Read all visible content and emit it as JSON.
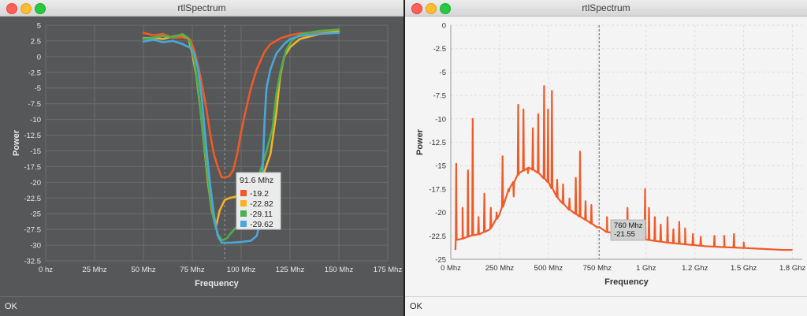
{
  "windows": [
    {
      "title": "rtlSpectrum",
      "status": "OK",
      "chart_data": {
        "type": "line",
        "xlabel": "Frequency",
        "ylabel": "Power",
        "xlim": [
          0,
          175
        ],
        "ylim": [
          -32.5,
          5
        ],
        "x_ticks": [
          0,
          25,
          50,
          75,
          100,
          125,
          150,
          175
        ],
        "x_tick_labels": [
          "0 hz",
          "25 Mhz",
          "50 Mhz",
          "75 Mhz",
          "100 Mhz",
          "125 Mhz",
          "150 Mhz",
          "175 Mhz"
        ],
        "y_ticks": [
          5,
          2.5,
          0,
          -2.5,
          -5,
          -7.5,
          -10,
          -12.5,
          -15,
          -17.5,
          -20,
          -22.5,
          -25,
          -27.5,
          -30,
          -32.5
        ],
        "y_tick_labels": [
          "5",
          "2.5",
          "0",
          "-2.5",
          "-5",
          "-7.5",
          "-10",
          "-12.5",
          "-15",
          "-17.5",
          "-20",
          "-22.5",
          "-25",
          "-27.5",
          "-30",
          "-32.5"
        ],
        "grid": true,
        "cursor_x": 91.6,
        "series": [
          {
            "color": "#f05a28",
            "x": [
              50,
              55,
              60,
              65,
              70,
              74,
              76,
              78,
              80,
              82,
              84,
              86,
              88,
              90,
              92,
              94,
              96,
              98,
              100,
              102,
              105,
              108,
              112,
              115,
              120,
              125,
              130,
              140,
              150
            ],
            "y": [
              3.8,
              3.4,
              3.6,
              3.0,
              3.1,
              2.7,
              1.0,
              -1.5,
              -4.5,
              -8,
              -12,
              -15.5,
              -17.5,
              -19.2,
              -19.2,
              -19.0,
              -18,
              -15.5,
              -12,
              -9,
              -5,
              -2,
              0.8,
              2,
              2.9,
              3.4,
              3.7,
              3.9,
              4
            ]
          },
          {
            "color": "#f5b225",
            "x": [
              50,
              55,
              60,
              65,
              70,
              73,
              75,
              77,
              79,
              81,
              83,
              85,
              87,
              89,
              91.6,
              94,
              97,
              100,
              105,
              110,
              115,
              118,
              120,
              122,
              125,
              130,
              140,
              150
            ],
            "y": [
              2.9,
              3.0,
              2.8,
              3.2,
              3.5,
              2.9,
              0.5,
              -3,
              -8,
              -14,
              -20,
              -24.5,
              -27.2,
              -24.5,
              -22.82,
              -22.5,
              -22.3,
              -22,
              -21.5,
              -20,
              -15.5,
              -9,
              -3,
              0,
              1.5,
              2.8,
              3.6,
              4
            ]
          },
          {
            "color": "#4caf50",
            "x": [
              50,
              55,
              60,
              65,
              70,
              72,
              74,
              76,
              78,
              80,
              82,
              84,
              86,
              88,
              90,
              91.6,
              93,
              95,
              98,
              102,
              106,
              110,
              113,
              116,
              118,
              120,
              123,
              126,
              130,
              140,
              150
            ],
            "y": [
              2.8,
              3.0,
              3.3,
              3.1,
              3.6,
              3.2,
              2.2,
              -0.5,
              -5,
              -11,
              -16.5,
              -22,
              -26,
              -28.2,
              -29.2,
              -29.11,
              -28.8,
              -28,
              -27,
              -25,
              -22,
              -18,
              -15,
              -11.5,
              -6,
              -2.5,
              1,
              2.6,
              3.5,
              4.1,
              4.3
            ]
          },
          {
            "color": "#4aa8d8",
            "x": [
              50,
              55,
              60,
              65,
              70,
              74,
              76,
              78,
              80,
              82,
              84,
              86,
              88,
              90,
              91.6,
              95,
              100,
              105,
              108,
              110,
              111,
              112,
              113,
              115,
              118,
              122,
              125,
              130,
              140,
              150
            ],
            "y": [
              2.4,
              2.7,
              2.3,
              2.5,
              2.0,
              1.4,
              0.5,
              -2,
              -7,
              -14,
              -20,
              -25,
              -28.5,
              -29.6,
              -29.62,
              -29.6,
              -29.5,
              -29.3,
              -28.5,
              -26,
              -18,
              -10,
              -5,
              -2,
              0.5,
              2,
              2.8,
              3.3,
              3.6,
              3.8
            ]
          }
        ],
        "tooltip": {
          "title": "91.6 Mhz",
          "values": [
            "-19.2",
            "-22.82",
            "-29.11",
            "-29.62"
          ]
        }
      }
    },
    {
      "title": "rtlSpectrum",
      "status": "OK",
      "chart_data": {
        "type": "line",
        "xlabel": "Frequency",
        "ylabel": "Power",
        "xlim": [
          0,
          1800
        ],
        "ylim": [
          -25,
          0
        ],
        "x_ticks": [
          0,
          250,
          500,
          750,
          1000,
          1250,
          1500,
          1750
        ],
        "x_tick_labels": [
          "0 Mhz",
          "250 Mhz",
          "500 Mhz",
          "750 Mhz",
          "1 Ghz",
          "1.2 Ghz",
          "1.5 Ghz",
          "1.8 Ghz"
        ],
        "y_ticks": [
          0,
          -2.5,
          -5,
          -7.5,
          -10,
          -12.5,
          -15,
          -17.5,
          -20,
          -22.5,
          -25
        ],
        "y_tick_labels": [
          "0",
          "-2.5",
          "-5",
          "-7.5",
          "-10",
          "-12.5",
          "-15",
          "-17.5",
          "-20",
          "-22.5",
          "-25"
        ],
        "grid": true,
        "cursor_x": 760,
        "series": [
          {
            "color": "#f05a28",
            "x": [
              24,
              30,
              60,
              100,
              150,
              200,
              250,
              300,
              350,
              400,
              450,
              500,
              550,
              600,
              650,
              700,
              750,
              760,
              800,
              850,
              900,
              950,
              1000,
              1100,
              1200,
              1300,
              1400,
              1500,
              1600,
              1700,
              1750
            ],
            "y": [
              -24,
              -22.4,
              -22.8,
              -22.5,
              -22.3,
              -21.8,
              -20.2,
              -17.5,
              -15.8,
              -15.2,
              -15.8,
              -16.8,
              -18.5,
              -19.6,
              -20.3,
              -20.9,
              -21.6,
              -21.55,
              -22.1,
              -22.2,
              -22.4,
              -22.7,
              -22.9,
              -23.2,
              -23.4,
              -23.6,
              -23.7,
              -23.8,
              -23.9,
              -24,
              -24
            ]
          }
        ],
        "spikes": {
          "x": [
            28,
            60,
            88,
            112,
            142,
            172,
            205,
            235,
            265,
            295,
            322,
            345,
            372,
            395,
            420,
            448,
            478,
            498,
            518,
            545,
            575,
            608,
            640,
            662,
            690,
            720,
            800,
            825,
            855,
            878,
            905,
            935,
            965,
            995,
            1015,
            1045,
            1075,
            1110,
            1140,
            1170,
            1200,
            1240,
            1280,
            1350,
            1400,
            1450,
            1500
          ],
          "y": [
            -14.8,
            -19.5,
            -15.5,
            -10,
            -20.5,
            -18,
            -19.5,
            -20,
            -14,
            -17.5,
            -18.3,
            -8.5,
            -9,
            -15.8,
            -11,
            -9.5,
            -6.5,
            -9,
            -7,
            -16.5,
            -17,
            -18.5,
            -16.3,
            -13.5,
            -18.8,
            -19.2,
            -20.5,
            -21.5,
            -21.8,
            -21,
            -19.5,
            -21.5,
            -21.5,
            -17.5,
            -19.5,
            -20.5,
            -21.3,
            -20.5,
            -21.8,
            -21,
            -21.7,
            -22.3,
            -22.6,
            -22.5,
            -22.5,
            -22.3,
            -23.2
          ]
        },
        "tooltip": {
          "values": [
            "760 Mhz",
            "-21.55"
          ]
        }
      }
    }
  ]
}
